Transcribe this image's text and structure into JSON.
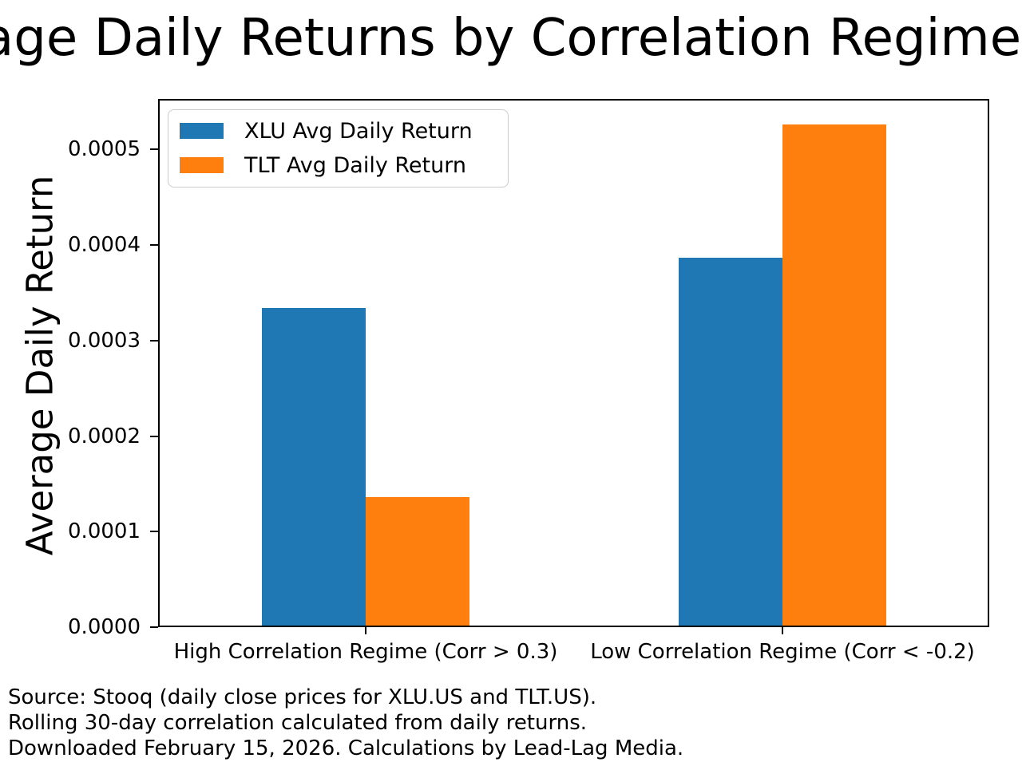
{
  "title": "age Daily Returns by Correlation Regime (X",
  "chart_data": {
    "type": "bar",
    "categories": [
      "High Correlation Regime (Corr > 0.3)",
      "Low Correlation Regime (Corr < -0.2)"
    ],
    "series": [
      {
        "name": "XLU Avg Daily Return",
        "color": "#1f77b4",
        "values": [
          0.000334,
          0.000387
        ]
      },
      {
        "name": "TLT Avg Daily Return",
        "color": "#ff7f0e",
        "values": [
          0.000136,
          0.000526
        ]
      }
    ],
    "xlabel": "",
    "ylabel": "Average Daily Return",
    "ylim": [
      0,
      0.000553
    ],
    "yticks": [
      0.0,
      0.0001,
      0.0002,
      0.0003,
      0.0004,
      0.0005
    ],
    "ytick_labels": [
      "0.0000",
      "0.0001",
      "0.0002",
      "0.0003",
      "0.0004",
      "0.0005"
    ],
    "grid": false,
    "legend_position": "upper left"
  },
  "footnote": {
    "lines": [
      "Source: Stooq (daily close prices for XLU.US and TLT.US).",
      "Rolling 30-day correlation calculated from daily returns.",
      "Downloaded February 15, 2026. Calculations by Lead-Lag Media."
    ]
  },
  "colors": {
    "background": "#ffffff",
    "text": "#000000",
    "axis": "#000000",
    "legend_border": "#cccccc",
    "xlu_bar": "#1f77b4",
    "tlt_bar": "#ff7f0e"
  }
}
